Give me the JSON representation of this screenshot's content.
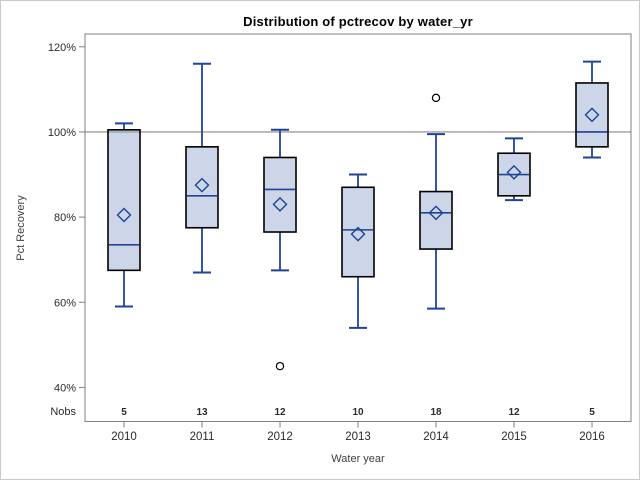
{
  "figure": {
    "title": "Distribution of pctrecov by water_yr"
  },
  "chart_data": {
    "type": "boxplot",
    "title": "Distribution of pctrecov by water_yr",
    "xlabel": "Water year",
    "ylabel": "Pct Recovery",
    "ylim": [
      32,
      123
    ],
    "yticks": [
      40,
      60,
      80,
      100,
      120
    ],
    "ytick_labels": [
      "40%",
      "60%",
      "80%",
      "100%",
      "120%"
    ],
    "ref_line": 100,
    "grid": "off",
    "legend": "none",
    "nobs_label": "Nobs",
    "categories": [
      "2010",
      "2011",
      "2012",
      "2013",
      "2014",
      "2015",
      "2016"
    ],
    "nobs": [
      5,
      13,
      12,
      10,
      18,
      12,
      5
    ],
    "boxes": [
      {
        "category": "2010",
        "nobs": 5,
        "whisker_low": 59,
        "q1": 67.5,
        "median": 73.5,
        "q3": 100.5,
        "whisker_high": 102,
        "mean": 80.5,
        "outliers": []
      },
      {
        "category": "2011",
        "nobs": 13,
        "whisker_low": 67,
        "q1": 77.5,
        "median": 85,
        "q3": 96.5,
        "whisker_high": 116,
        "mean": 87.5,
        "outliers": []
      },
      {
        "category": "2012",
        "nobs": 12,
        "whisker_low": 67.5,
        "q1": 76.5,
        "median": 86.5,
        "q3": 94,
        "whisker_high": 100.5,
        "mean": 83,
        "outliers": [
          45
        ]
      },
      {
        "category": "2013",
        "nobs": 10,
        "whisker_low": 54,
        "q1": 66,
        "median": 77,
        "q3": 87,
        "whisker_high": 90,
        "mean": 76,
        "outliers": []
      },
      {
        "category": "2014",
        "nobs": 18,
        "whisker_low": 58.5,
        "q1": 72.5,
        "median": 81,
        "q3": 86,
        "whisker_high": 99.5,
        "mean": 81,
        "outliers": [
          108
        ]
      },
      {
        "category": "2015",
        "nobs": 12,
        "whisker_low": 84,
        "q1": 85,
        "median": 90,
        "q3": 95,
        "whisker_high": 98.5,
        "mean": 90.5,
        "outliers": []
      },
      {
        "category": "2016",
        "nobs": 5,
        "whisker_low": 94,
        "q1": 96.5,
        "median": 100,
        "q3": 111.5,
        "whisker_high": 116.5,
        "mean": 104,
        "outliers": []
      }
    ],
    "colors": {
      "box_fill": "#ccd6e8",
      "box_border": "#000000",
      "whisker": "#1f4396",
      "median": "#1f4396",
      "mean_marker": "#1f4396",
      "outlier": "#000000",
      "reference_line": "#9e9e9e",
      "frame": "#7f7f7f",
      "tick_text": "#2b2b2b",
      "figure_border": "#c9c9c9"
    }
  }
}
